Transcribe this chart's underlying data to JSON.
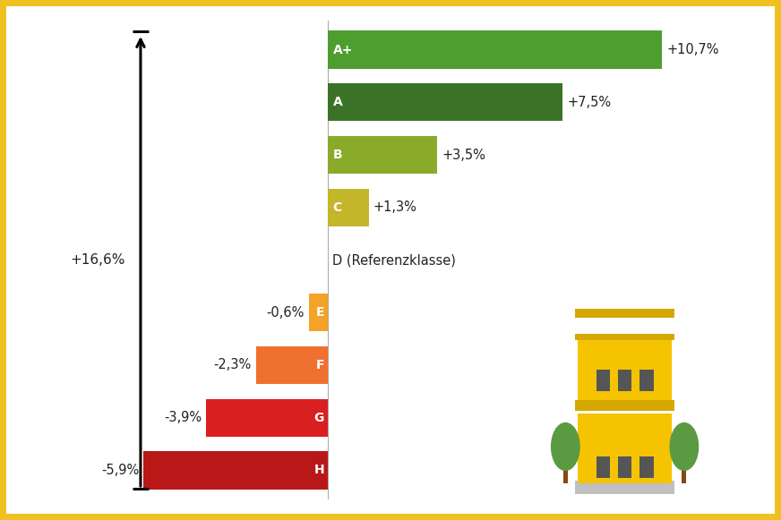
{
  "categories": [
    "A+",
    "A",
    "B",
    "C",
    "D",
    "E",
    "F",
    "G",
    "H"
  ],
  "values": [
    10.7,
    7.5,
    3.5,
    1.3,
    0,
    -0.6,
    -2.3,
    -3.9,
    -5.9
  ],
  "labels": [
    "+10,7%",
    "+7,5%",
    "+3,5%",
    "+1,3%",
    "D (Referenzklasse)",
    "-0,6%",
    "-2,3%",
    "-3,9%",
    "-5,9%"
  ],
  "bar_colors": [
    "#4d9e2e",
    "#3b7228",
    "#8aaa2a",
    "#c4b62a",
    "#ffffff",
    "#f5a228",
    "#f07030",
    "#d91f1f",
    "#b81818"
  ],
  "background_color": "#ffffff",
  "border_color": "#f0c020",
  "arrow_annotation": "+16,6%",
  "figsize": [
    8.72,
    5.81
  ],
  "dpi": 100
}
